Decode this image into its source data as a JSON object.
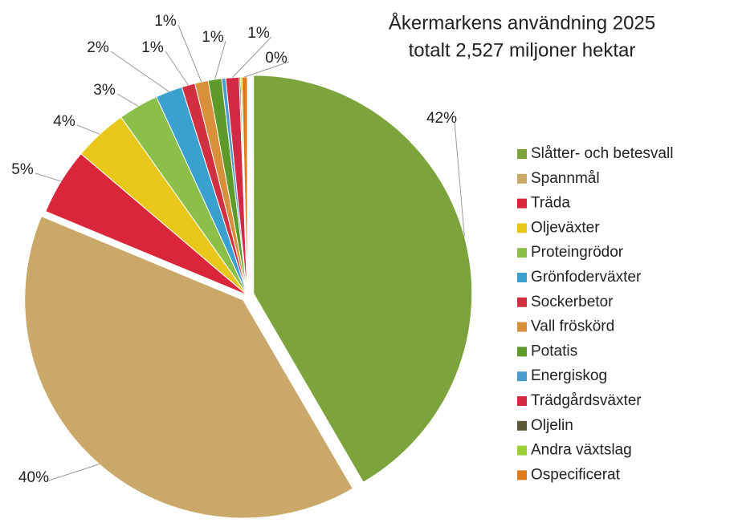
{
  "chart_data": {
    "type": "pie",
    "title": "Åkermarkens användning 2025",
    "subtitle": "totalt 2,527 miljoner hektar",
    "categories": [
      "Slåtter- och betesvall",
      "Spannmål",
      "Träda",
      "Oljeväxter",
      "Proteingrödor",
      "Grönfoderväxter",
      "Sockerbetor",
      "Vall fröskörd",
      "Potatis",
      "Energiskog",
      "Trädgårdsväxter",
      "Oljelin",
      "Andra växtslag",
      "Ospecificerat"
    ],
    "values": [
      42,
      40,
      5,
      4,
      3,
      2,
      1,
      1,
      1,
      0.3,
      1,
      0.1,
      0.1,
      0.4
    ],
    "value_labels": [
      "42%",
      "40%",
      "5%",
      "4%",
      "3%",
      "2%",
      "1%",
      "1%",
      "1%",
      null,
      "1%",
      null,
      null,
      "0%"
    ],
    "colors": [
      "#7da43c",
      "#c9a86a",
      "#d9263a",
      "#e8c61a",
      "#8cbf4a",
      "#3aa0d0",
      "#d03040",
      "#d9903a",
      "#5e9a2a",
      "#4a9ccc",
      "#d22a45",
      "#5a5a38",
      "#9ad034",
      "#e07a1c"
    ],
    "legend": "right"
  }
}
